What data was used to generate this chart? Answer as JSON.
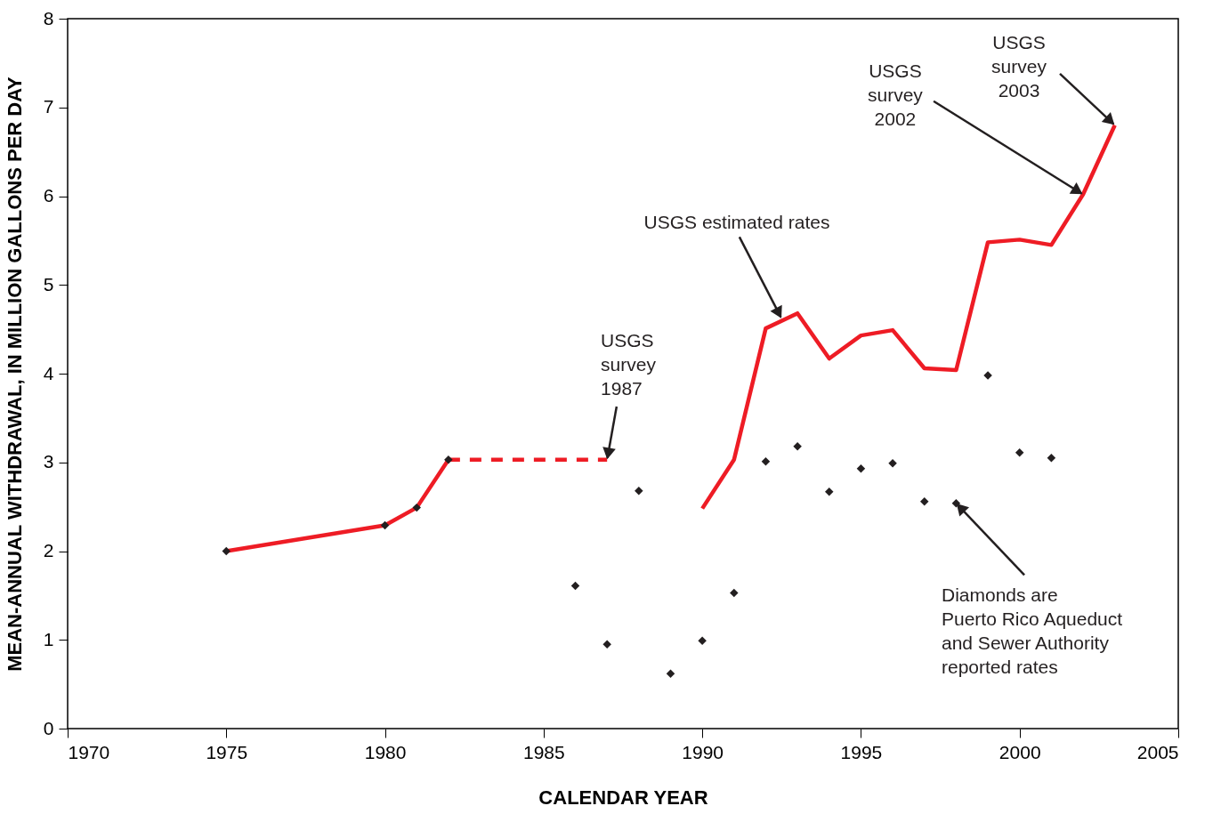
{
  "chart_data": {
    "type": "line",
    "xlabel": "CALENDAR YEAR",
    "ylabel": "MEAN-ANNUAL WITHDRAWAL, IN MILLION GALLONS PER DAY",
    "xlim": [
      1970,
      2005
    ],
    "xticks": [
      1970,
      1975,
      1980,
      1985,
      1990,
      1995,
      2000,
      2005
    ],
    "ylim": [
      0,
      8
    ],
    "yticks": [
      0,
      1,
      2,
      3,
      4,
      5,
      6,
      7,
      8
    ],
    "series": [
      {
        "color": "#ee1c25",
        "line_style": "solid",
        "x": [
          1975,
          1980,
          1981,
          1982
        ],
        "values": [
          2.0,
          2.29,
          2.49,
          3.03
        ]
      },
      {
        "color": "#ee1c25",
        "line_style": "dashed",
        "x": [
          1982,
          1987
        ],
        "values": [
          3.03,
          3.03
        ]
      },
      {
        "color": "#ee1c25",
        "line_style": "solid",
        "x": [
          1990,
          1991,
          1992,
          1993,
          1994,
          1995,
          1996,
          1997,
          1998,
          1999,
          2000,
          2001,
          2002,
          2003
        ],
        "values": [
          2.48,
          3.03,
          4.51,
          4.68,
          4.17,
          4.43,
          4.49,
          4.06,
          4.04,
          5.48,
          5.51,
          5.45,
          6.02,
          6.8
        ]
      },
      {
        "type": "scatter",
        "marker": "diamond",
        "color": "#231f20",
        "x": [
          1975,
          1980,
          1981,
          1982,
          1986,
          1987,
          1988,
          1989,
          1990,
          1991,
          1992,
          1993,
          1994,
          1995,
          1996,
          1997,
          1998,
          1999,
          2000,
          2001
        ],
        "values": [
          2.0,
          2.29,
          2.49,
          3.03,
          1.61,
          0.95,
          2.68,
          0.62,
          0.99,
          1.53,
          3.01,
          3.18,
          2.67,
          2.93,
          2.99,
          2.56,
          2.54,
          3.98,
          3.11,
          3.05
        ]
      }
    ],
    "annotations": [
      {
        "text": "USGS survey 1987",
        "x": 1987,
        "y": 3.03
      },
      {
        "text": "USGS estimated rates",
        "x": 1992.5,
        "y": 4.62
      },
      {
        "text": "USGS survey 2002",
        "x": 2002,
        "y": 6.02
      },
      {
        "text": "USGS survey 2003",
        "x": 2003,
        "y": 6.8
      },
      {
        "text": "Diamonds are Puerto Rico Aqueduct and Sewer Authority reported rates",
        "x": 1998,
        "y": 2.54
      }
    ]
  }
}
